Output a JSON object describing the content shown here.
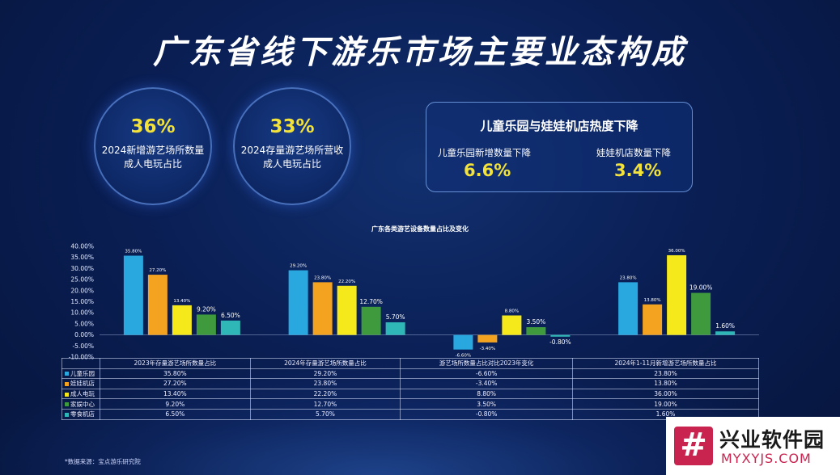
{
  "title": "广东省线下游乐市场主要业态构成",
  "circles": [
    {
      "pct": "36%",
      "line1": "2024新增游艺场所数量",
      "line2": "成人电玩占比"
    },
    {
      "pct": "33%",
      "line1": "2024存量游艺场所营收",
      "line2": "成人电玩占比"
    }
  ],
  "panel": {
    "heading": "儿童乐园与娃娃机店热度下降",
    "left_label": "儿童乐园新增数量下降",
    "left_value": "6.6%",
    "right_label": "娃娃机店数量下降",
    "right_value": "3.4%"
  },
  "chart_data": {
    "type": "bar",
    "title": "广东各类游艺设备数量占比及变化",
    "categories": [
      "2023年存量游艺场所数量占比",
      "2024年存量游艺场所数量占比",
      "游艺场所数量占比对比2023年变化",
      "2024年1-11月新增游艺场所数量占比"
    ],
    "series": [
      {
        "name": "儿童乐园",
        "color": "#29a8e0",
        "values": [
          35.8,
          29.2,
          -6.6,
          23.8
        ],
        "labels": [
          "35.80%",
          "29.20%",
          "-6.60%",
          "23.80%"
        ]
      },
      {
        "name": "娃娃机店",
        "color": "#f4a321",
        "values": [
          27.2,
          23.8,
          -3.4,
          13.8
        ],
        "labels": [
          "27.20%",
          "23.80%",
          "-3.40%",
          "13.80%"
        ]
      },
      {
        "name": "成人电玩",
        "color": "#f5e91c",
        "values": [
          13.4,
          22.2,
          8.8,
          36.0
        ],
        "labels": [
          "13.40%",
          "22.20%",
          "8.80%",
          "36.00%"
        ]
      },
      {
        "name": "家娱中心",
        "color": "#3f9a3e",
        "values": [
          9.2,
          12.7,
          3.5,
          19.0
        ],
        "labels": [
          "9.20%",
          "12.70%",
          "3.50%",
          "19.00%"
        ]
      },
      {
        "name": "零食机店",
        "color": "#2fb6b6",
        "values": [
          6.5,
          5.7,
          -0.8,
          1.6
        ],
        "labels": [
          "6.50%",
          "5.70%",
          "-0.80%",
          "1.60%"
        ]
      }
    ],
    "y_ticks": [
      "40.00%",
      "35.00%",
      "30.00%",
      "25.00%",
      "20.00%",
      "15.00%",
      "10.00%",
      "5.00%",
      "0.00%",
      "-5.00%",
      "-10.00%"
    ],
    "ylim": [
      -10,
      40
    ],
    "legend": "table-below",
    "grid": false
  },
  "source": "*数据来源：宝点游乐研究院",
  "watermark": {
    "logo": "#",
    "name": "兴业软件园",
    "url": "MYXYJS.COM"
  }
}
